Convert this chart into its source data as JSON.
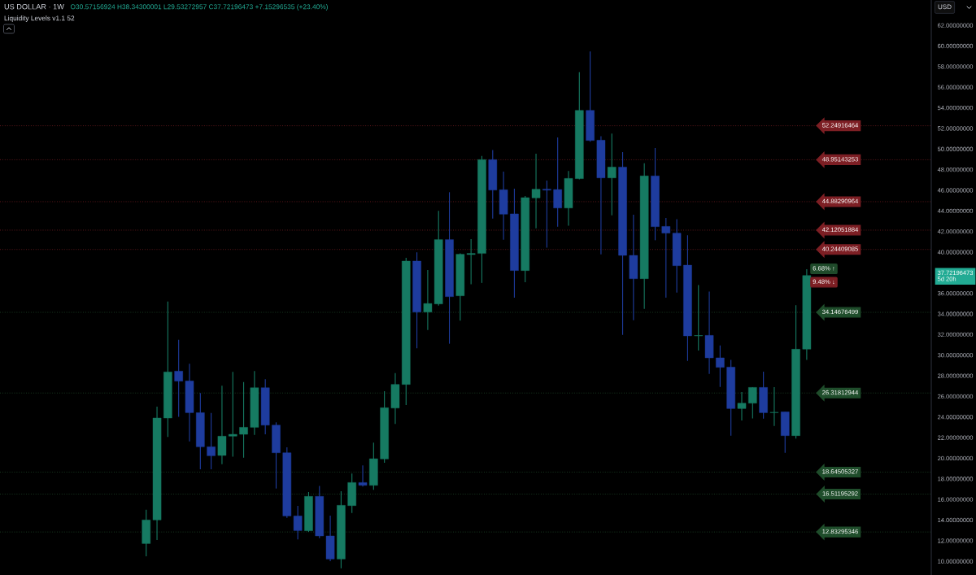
{
  "chart_data": {
    "type": "candlestick",
    "title": "US DOLLAR · 1W",
    "subtitle": "Liquidity Levels v1.1 52",
    "ylabel": "USD",
    "tick_labels": "y",
    "categories": [
      null,
      null,
      null,
      null,
      null,
      null,
      null,
      null,
      null,
      null,
      null,
      null,
      null,
      null,
      null,
      null,
      null,
      null,
      null,
      null,
      null,
      null,
      null,
      null,
      null,
      null,
      null,
      null,
      null,
      null,
      null,
      null,
      null,
      null,
      null,
      null,
      null,
      null,
      null,
      null,
      null,
      null,
      null,
      null,
      null,
      null,
      null,
      null,
      null,
      null,
      null,
      null,
      null,
      null,
      null,
      null,
      null,
      null,
      null,
      null,
      null,
      null,
      null,
      null,
      null,
      null,
      null,
      null,
      null,
      null,
      null,
      null,
      null,
      null,
      null,
      null,
      null,
      null,
      null,
      null,
      null,
      null,
      null,
      null,
      null,
      null
    ],
    "ohlc": [
      null,
      null,
      null,
      null,
      null,
      null,
      null,
      null,
      null,
      null,
      null,
      null,
      null,
      [
        11.71,
        15.0,
        10.47,
        14.0
      ],
      [
        14.0,
        24.99,
        12.05,
        23.89
      ],
      [
        23.89,
        35.2,
        22.05,
        28.36
      ],
      [
        28.44,
        31.49,
        24.0,
        27.47
      ],
      [
        27.49,
        29.15,
        21.63,
        24.41
      ],
      [
        24.41,
        26.31,
        18.92,
        21.1
      ],
      [
        21.1,
        24.39,
        18.92,
        20.23
      ],
      [
        20.26,
        27.02,
        19.42,
        22.13
      ],
      [
        22.13,
        28.36,
        20.15,
        22.31
      ],
      [
        22.31,
        27.39,
        20.05,
        22.99
      ],
      [
        22.99,
        28.44,
        22.26,
        26.83
      ],
      [
        26.83,
        27.65,
        22.31,
        23.2
      ],
      [
        23.2,
        23.47,
        17.05,
        20.52
      ],
      [
        20.52,
        21.05,
        14.21,
        14.39
      ],
      [
        14.39,
        15.37,
        12.11,
        12.97
      ],
      [
        12.95,
        16.71,
        12.84,
        16.29
      ],
      [
        16.29,
        17.31,
        12.24,
        12.45
      ],
      [
        12.45,
        14.42,
        10.0,
        10.21
      ],
      [
        10.21,
        16.79,
        9.32,
        15.42
      ],
      [
        15.39,
        18.5,
        14.68,
        17.63
      ],
      [
        17.63,
        19.29,
        17.24,
        17.36
      ],
      [
        17.36,
        21.5,
        16.92,
        19.94
      ],
      [
        19.92,
        26.49,
        19.55,
        24.89
      ],
      [
        24.86,
        28.25,
        23.31,
        27.15
      ],
      [
        27.15,
        39.43,
        25.15,
        39.12
      ],
      [
        39.12,
        39.96,
        30.65,
        34.17
      ],
      [
        34.17,
        38.25,
        32.44,
        35.0
      ],
      [
        34.96,
        44.0,
        34.8,
        41.2
      ],
      [
        41.2,
        45.8,
        31.1,
        35.67
      ],
      [
        35.75,
        39.86,
        33.33,
        39.78
      ],
      [
        39.75,
        41.25,
        36.88,
        39.86
      ],
      [
        39.86,
        49.32,
        37.0,
        48.96
      ],
      [
        48.96,
        49.9,
        43.25,
        46.01
      ],
      [
        46.04,
        47.8,
        41.2,
        43.67
      ],
      [
        43.7,
        46.14,
        35.57,
        38.2
      ],
      [
        38.2,
        45.43,
        37.07,
        45.27
      ],
      [
        45.25,
        49.53,
        42.3,
        46.09
      ],
      [
        46.1,
        46.93,
        40.43,
        46.0
      ],
      [
        46.06,
        51.11,
        42.46,
        44.27
      ],
      [
        44.27,
        47.85,
        42.56,
        47.14
      ],
      [
        47.12,
        57.45,
        47.06,
        53.74
      ],
      [
        53.74,
        59.45,
        50.69,
        50.82
      ],
      [
        50.85,
        51.24,
        39.77,
        47.19
      ],
      [
        47.19,
        51.48,
        43.56,
        48.24
      ],
      [
        48.24,
        49.69,
        31.96,
        39.67
      ],
      [
        39.67,
        43.61,
        33.38,
        37.41
      ],
      [
        37.41,
        48.61,
        34.49,
        47.38
      ],
      [
        47.38,
        50.09,
        41.14,
        42.46
      ],
      [
        42.48,
        43.3,
        35.57,
        41.83
      ],
      [
        41.83,
        43.19,
        36.07,
        38.67
      ],
      [
        38.72,
        41.62,
        29.44,
        31.86
      ],
      [
        31.86,
        36.8,
        30.44,
        31.9
      ],
      [
        31.91,
        36.17,
        28.18,
        29.73
      ],
      [
        29.73,
        30.94,
        26.91,
        28.81
      ],
      [
        28.83,
        29.54,
        22.18,
        24.81
      ],
      [
        24.81,
        26.41,
        23.65,
        25.33
      ],
      [
        25.33,
        26.86,
        23.86,
        26.86
      ],
      [
        26.86,
        28.39,
        23.84,
        24.41
      ],
      [
        24.41,
        26.89,
        23.13,
        24.45
      ],
      [
        24.49,
        24.49,
        20.52,
        22.18
      ],
      [
        22.18,
        34.83,
        21.89,
        30.57
      ],
      [
        30.57,
        38.34,
        29.53,
        37.72
      ],
      null,
      null,
      null,
      null,
      null,
      null,
      null,
      null,
      null,
      null,
      null
    ],
    "colors": [
      null,
      null,
      null,
      null,
      null,
      null,
      null,
      null,
      null,
      null,
      null,
      null,
      null,
      "#167a62",
      "#167a62",
      "#167a62",
      "#1e3c9e",
      "#1e3c9e",
      "#1e3c9e",
      "#1e3c9e",
      "#167a62",
      "#167a62",
      "#167a62",
      "#167a62",
      "#1e3c9e",
      "#1e3c9e",
      "#1e3c9e",
      "#1e3c9e",
      "#167a62",
      "#1e3c9e",
      "#1e3c9e",
      "#167a62",
      "#167a62",
      "#1e3c9e",
      "#167a62",
      "#167a62",
      "#167a62",
      "#167a62",
      "#1e3c9e",
      "#167a62",
      "#167a62",
      "#1e3c9e",
      "#167a62",
      "#167a62",
      "#167a62",
      "#1e3c9e",
      "#1e3c9e",
      "#1e3c9e",
      "#167a62",
      "#167a62",
      "#1e3c9e",
      "#1e3c9e",
      "#167a62",
      "#167a62",
      "#1e3c9e",
      "#1e3c9e",
      "#167a62",
      "#1e3c9e",
      "#1e3c9e",
      "#167a62",
      "#1e3c9e",
      "#1e3c9e",
      "#1e3c9e",
      "#1e3c9e",
      "#167a62",
      "#1e3c9e",
      "#1e3c9e",
      "#1e3c9e",
      "#167a62",
      "#167a62",
      "#1e3c9e",
      "#167a62",
      "#1e3c9e",
      "#167a62",
      "#167a62",
      null,
      null,
      null,
      null,
      null,
      null,
      null,
      null,
      null,
      null,
      null
    ],
    "ylim": [
      8.66,
      64.45
    ],
    "yticks": [
      {
        "value": 10,
        "label": "10.00000000"
      },
      {
        "value": 12,
        "label": "12.00000000"
      },
      {
        "value": 14,
        "label": "14.00000000"
      },
      {
        "value": 16,
        "label": "16.00000000"
      },
      {
        "value": 18,
        "label": "18.00000000"
      },
      {
        "value": 20,
        "label": "20.00000000"
      },
      {
        "value": 22,
        "label": "22.00000000"
      },
      {
        "value": 24,
        "label": "24.00000000"
      },
      {
        "value": 26,
        "label": "26.00000000"
      },
      {
        "value": 28,
        "label": "28.00000000"
      },
      {
        "value": 30,
        "label": "30.00000000"
      },
      {
        "value": 32,
        "label": "32.00000000"
      },
      {
        "value": 34,
        "label": "34.00000000"
      },
      {
        "value": 36,
        "label": "36.00000000"
      },
      {
        "value": 37.72,
        "label": "37.72196473\n5d 20h"
      },
      {
        "value": 40,
        "label": "40.00000000"
      },
      {
        "value": 42,
        "label": "42.00000000"
      },
      {
        "value": 44,
        "label": "44.00000000"
      },
      {
        "value": 46,
        "label": "46.00000000"
      },
      {
        "value": 48,
        "label": "48.00000000"
      },
      {
        "value": 50,
        "label": "50.00000000"
      },
      {
        "value": 52,
        "label": "52.00000000"
      },
      {
        "value": 54,
        "label": "54.00000000"
      },
      {
        "value": 56,
        "label": "56.00000000"
      },
      {
        "value": 58,
        "label": "58.00000000"
      },
      {
        "value": 60,
        "label": "60.00000000"
      },
      {
        "value": 62,
        "label": "62.00000000"
      }
    ],
    "ref_lines": [
      {
        "axis": "y",
        "value": 52.24916464,
        "label": "52.24916464",
        "color": "#7d1f24",
        "line_style": "dotted"
      },
      {
        "axis": "y",
        "value": 48.95143253,
        "label": "48.95143253",
        "color": "#7d1f24",
        "line_style": "dotted"
      },
      {
        "axis": "y",
        "value": 44.88290964,
        "label": "44.88290964",
        "color": "#7d1f24",
        "line_style": "dotted"
      },
      {
        "axis": "y",
        "value": 42.12051884,
        "label": "42.12051884",
        "color": "#7d1f24",
        "line_style": "dotted"
      },
      {
        "axis": "y",
        "value": 40.24409085,
        "label": "40.24409085",
        "color": "#7d1f24",
        "line_style": "dotted"
      },
      {
        "axis": "y",
        "value": 34.14676499,
        "label": "34.14676499",
        "color": "#1f4d2b",
        "line_style": "dotted"
      },
      {
        "axis": "y",
        "value": 26.31812944,
        "label": "26.31812944",
        "color": "#1f4d2b",
        "line_style": "dotted"
      },
      {
        "axis": "y",
        "value": 18.64505327,
        "label": "18.64505327",
        "color": "#1f4d2b",
        "line_style": "dotted"
      },
      {
        "axis": "y",
        "value": 16.51195292,
        "label": "16.51195292",
        "color": "#1f4d2b",
        "line_style": "dotted"
      },
      {
        "axis": "y",
        "value": 12.83295346,
        "label": "12.83295346",
        "color": "#1f4d2b",
        "line_style": "dotted"
      }
    ],
    "annotations": [
      "O30.57156924 H38.34300001 L29.53272957 C37.72196473 +7.15296535 (+23.40%)",
      {
        "text": "6.68% ↑",
        "y": 38.37
      },
      {
        "text": "9.48% ↓",
        "y": 37.07
      }
    ]
  }
}
